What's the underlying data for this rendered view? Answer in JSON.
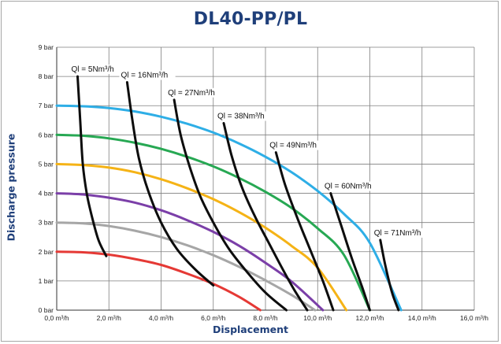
{
  "chart_data": {
    "type": "line",
    "title": "DL40-PP/PL",
    "xlabel": "Displacement",
    "ylabel": "Discharge pressure",
    "xlim": [
      0,
      16
    ],
    "ylim": [
      0,
      9
    ],
    "grid": true,
    "x_ticks": [
      "0,0 m³/h",
      "2,0 m³/h",
      "4,0 m³/h",
      "6,0 m³/h",
      "8,0 m³/h",
      "10,0 m³/h",
      "12,0 m³/h",
      "14,0 m³/h",
      "16,0 m³/h"
    ],
    "y_ticks": [
      "0 bar",
      "1 bar",
      "2 bar",
      "3 bar",
      "4 bar",
      "5 bar",
      "6 bar",
      "7 bar",
      "8 bar",
      "9 bar"
    ],
    "pressure_curves": [
      {
        "color": "#e53935",
        "x": [
          0,
          1.0,
          2.0,
          3.0,
          4.0,
          5.0,
          6.0,
          7.0,
          7.8
        ],
        "y": [
          2.0,
          1.98,
          1.9,
          1.75,
          1.55,
          1.25,
          0.9,
          0.45,
          0.0
        ]
      },
      {
        "color": "#a6a6a6",
        "x": [
          0,
          1.0,
          2.0,
          3.0,
          4.0,
          5.0,
          6.0,
          7.0,
          8.0,
          9.0,
          9.9
        ],
        "y": [
          3.0,
          2.97,
          2.88,
          2.72,
          2.5,
          2.22,
          1.88,
          1.48,
          1.02,
          0.52,
          0.0
        ]
      },
      {
        "color": "#7b3fa8",
        "x": [
          0,
          1.0,
          2.0,
          3.0,
          4.0,
          5.0,
          6.0,
          7.0,
          8.0,
          9.0,
          10.2
        ],
        "y": [
          4.0,
          3.96,
          3.85,
          3.68,
          3.42,
          3.08,
          2.68,
          2.2,
          1.62,
          0.98,
          0.0
        ]
      },
      {
        "color": "#f5b316",
        "x": [
          0,
          1.0,
          2.0,
          3.0,
          4.0,
          5.0,
          6.0,
          7.0,
          8.0,
          9.0,
          10.0,
          11.1
        ],
        "y": [
          5.0,
          4.97,
          4.88,
          4.72,
          4.48,
          4.17,
          3.8,
          3.35,
          2.82,
          2.2,
          1.45,
          0.0
        ]
      },
      {
        "color": "#27a853",
        "x": [
          0,
          1.0,
          2.0,
          3.0,
          4.0,
          5.0,
          6.0,
          7.0,
          8.0,
          9.0,
          10.0,
          11.0,
          12.0
        ],
        "y": [
          6.0,
          5.97,
          5.88,
          5.73,
          5.52,
          5.25,
          4.92,
          4.52,
          4.05,
          3.5,
          2.8,
          1.9,
          0.0
        ]
      },
      {
        "color": "#2eaee6",
        "x": [
          0,
          1.0,
          2.0,
          3.0,
          4.0,
          5.0,
          6.0,
          7.0,
          8.0,
          9.0,
          10.0,
          11.0,
          12.0,
          13.2
        ],
        "y": [
          7.0,
          6.98,
          6.92,
          6.8,
          6.62,
          6.38,
          6.08,
          5.7,
          5.25,
          4.72,
          4.08,
          3.3,
          2.3,
          0.0
        ]
      }
    ],
    "ql_curves": [
      {
        "label": "Ql = 5Nm³/h",
        "x": [
          0.8,
          0.9,
          1.0,
          1.15,
          1.35,
          1.6,
          1.9
        ],
        "y": [
          8.0,
          6.5,
          5.0,
          4.0,
          3.2,
          2.4,
          1.85
        ]
      },
      {
        "label": "Ql = 16Nm³/h",
        "x": [
          2.7,
          2.9,
          3.15,
          3.5,
          4.0,
          4.6,
          5.3,
          6.0
        ],
        "y": [
          7.8,
          6.5,
          5.2,
          4.1,
          3.0,
          2.1,
          1.4,
          0.85
        ]
      },
      {
        "label": "Ql = 27Nm³/h",
        "x": [
          4.5,
          4.75,
          5.1,
          5.5,
          6.0,
          6.6,
          7.3,
          8.0,
          8.8
        ],
        "y": [
          7.2,
          6.0,
          4.9,
          3.9,
          3.0,
          2.1,
          1.3,
          0.6,
          0.0
        ]
      },
      {
        "label": "Ql = 38Nm³/h",
        "x": [
          6.4,
          6.7,
          7.1,
          7.6,
          8.1,
          8.6,
          9.1,
          9.6
        ],
        "y": [
          6.4,
          5.3,
          4.2,
          3.2,
          2.35,
          1.5,
          0.7,
          0.0
        ]
      },
      {
        "label": "Ql = 49Nm³/h",
        "x": [
          8.4,
          8.75,
          9.2,
          9.7,
          10.2,
          10.6
        ],
        "y": [
          5.4,
          4.3,
          3.2,
          2.1,
          1.0,
          0.0
        ]
      },
      {
        "label": "Ql = 60Nm³/h",
        "x": [
          10.5,
          10.9,
          11.3,
          11.7,
          12.0
        ],
        "y": [
          4.0,
          2.9,
          1.8,
          0.8,
          0.0
        ]
      },
      {
        "label": "Ql = 71Nm³/h",
        "x": [
          12.4,
          12.6,
          12.85,
          13.1
        ],
        "y": [
          2.4,
          1.5,
          0.6,
          0.0
        ]
      }
    ]
  }
}
